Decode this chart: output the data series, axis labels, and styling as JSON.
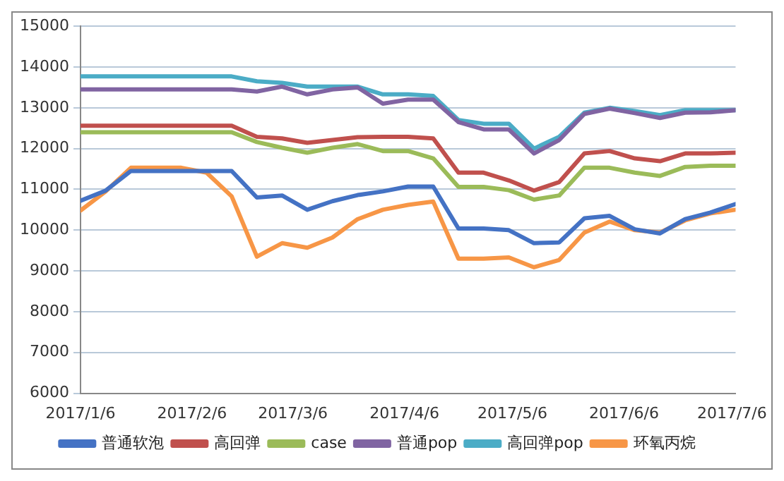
{
  "chart_data": {
    "type": "line",
    "x": [
      "2017-01-06",
      "2017-01-13",
      "2017-01-20",
      "2017-01-27",
      "2017-02-03",
      "2017-02-10",
      "2017-02-17",
      "2017-02-24",
      "2017-03-03",
      "2017-03-10",
      "2017-03-17",
      "2017-03-24",
      "2017-03-31",
      "2017-04-07",
      "2017-04-14",
      "2017-04-21",
      "2017-04-28",
      "2017-05-05",
      "2017-05-12",
      "2017-05-19",
      "2017-05-26",
      "2017-06-02",
      "2017-06-09",
      "2017-06-16",
      "2017-06-23",
      "2017-06-30",
      "2017-07-07"
    ],
    "series": [
      {
        "name": "普通软泡",
        "color": "#4472c4",
        "values": [
          10720,
          10970,
          11450,
          11450,
          11450,
          11450,
          11450,
          10800,
          10850,
          10500,
          10710,
          10860,
          10950,
          11070,
          11070,
          10040,
          10040,
          10000,
          9680,
          9700,
          10290,
          10350,
          10020,
          9920,
          10270,
          10430,
          10640
        ]
      },
      {
        "name": "高回弹",
        "color": "#c0504d",
        "values": [
          12560,
          12560,
          12560,
          12560,
          12560,
          12560,
          12560,
          12290,
          12250,
          12140,
          12210,
          12280,
          12290,
          12290,
          12250,
          11410,
          11410,
          11220,
          10970,
          11180,
          11880,
          11940,
          11760,
          11690,
          11880,
          11880,
          11900
        ]
      },
      {
        "name": "case",
        "color": "#9bbb59",
        "values": [
          12400,
          12400,
          12400,
          12400,
          12400,
          12400,
          12400,
          12160,
          12020,
          11900,
          12020,
          12110,
          11940,
          11940,
          11760,
          11060,
          11060,
          10980,
          10750,
          10850,
          11530,
          11530,
          11410,
          11330,
          11550,
          11580,
          11580
        ]
      },
      {
        "name": "普通pop",
        "color": "#8064a2",
        "values": [
          13450,
          13450,
          13450,
          13450,
          13450,
          13450,
          13450,
          13400,
          13520,
          13330,
          13450,
          13500,
          13100,
          13200,
          13200,
          12650,
          12470,
          12470,
          11880,
          12210,
          12850,
          12980,
          12870,
          12750,
          12880,
          12890,
          12940
        ]
      },
      {
        "name": "高回弹pop",
        "color": "#4bacc6",
        "values": [
          13770,
          13770,
          13770,
          13770,
          13770,
          13770,
          13770,
          13650,
          13610,
          13520,
          13520,
          13520,
          13330,
          13330,
          13290,
          12700,
          12610,
          12610,
          12000,
          12290,
          12880,
          13000,
          12920,
          12820,
          12940,
          12940,
          12940
        ]
      },
      {
        "name": "环氧丙烷",
        "color": "#f79646",
        "values": [
          10480,
          10950,
          11530,
          11530,
          11530,
          11410,
          10830,
          9350,
          9680,
          9570,
          9820,
          10270,
          10500,
          10620,
          10700,
          9300,
          9300,
          9330,
          9090,
          9270,
          9940,
          10210,
          10000,
          9940,
          10240,
          10410,
          10500
        ]
      }
    ],
    "xlim": [
      "2017-01-06",
      "2017-07-07"
    ],
    "xticks": [
      {
        "value": "2017-01-06",
        "label": "2017/1/6"
      },
      {
        "value": "2017-02-06",
        "label": "2017/2/6"
      },
      {
        "value": "2017-03-06",
        "label": "2017/3/6"
      },
      {
        "value": "2017-04-06",
        "label": "2017/4/6"
      },
      {
        "value": "2017-05-06",
        "label": "2017/5/6"
      },
      {
        "value": "2017-06-06",
        "label": "2017/6/6"
      },
      {
        "value": "2017-07-06",
        "label": "2017/7/6"
      }
    ],
    "ylim": [
      6000,
      15000
    ],
    "yticks": [
      6000,
      7000,
      8000,
      9000,
      10000,
      11000,
      12000,
      13000,
      14000,
      15000
    ],
    "grid": "y",
    "legend": "bottom",
    "marker": "none",
    "line_style": "solid"
  }
}
